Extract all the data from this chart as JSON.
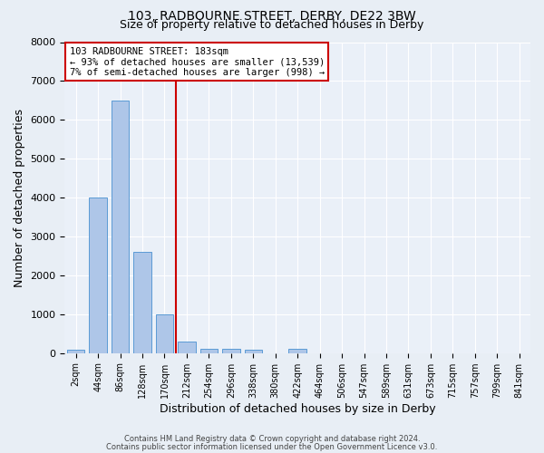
{
  "title1": "103, RADBOURNE STREET, DERBY, DE22 3BW",
  "title2": "Size of property relative to detached houses in Derby",
  "xlabel": "Distribution of detached houses by size in Derby",
  "ylabel": "Number of detached properties",
  "bin_labels": [
    "2sqm",
    "44sqm",
    "86sqm",
    "128sqm",
    "170sqm",
    "212sqm",
    "254sqm",
    "296sqm",
    "338sqm",
    "380sqm",
    "422sqm",
    "464sqm",
    "506sqm",
    "547sqm",
    "589sqm",
    "631sqm",
    "673sqm",
    "715sqm",
    "757sqm",
    "799sqm",
    "841sqm"
  ],
  "bin_values": [
    80,
    4000,
    6500,
    2600,
    1000,
    300,
    120,
    100,
    80,
    0,
    100,
    0,
    0,
    0,
    0,
    0,
    0,
    0,
    0,
    0,
    0
  ],
  "bar_color": "#aec6e8",
  "bar_edge_color": "#5b9bd5",
  "bar_width": 0.8,
  "vline_color": "#cc0000",
  "ylim": [
    0,
    8000
  ],
  "yticks": [
    0,
    1000,
    2000,
    3000,
    4000,
    5000,
    6000,
    7000,
    8000
  ],
  "annotation_text": "103 RADBOURNE STREET: 183sqm\n← 93% of detached houses are smaller (13,539)\n7% of semi-detached houses are larger (998) →",
  "annotation_box_color": "#ffffff",
  "annotation_box_edge": "#cc0000",
  "footer_text1": "Contains HM Land Registry data © Crown copyright and database right 2024.",
  "footer_text2": "Contains public sector information licensed under the Open Government Licence v3.0.",
  "bg_color": "#e8eef5",
  "plot_bg_color": "#eaf0f8"
}
